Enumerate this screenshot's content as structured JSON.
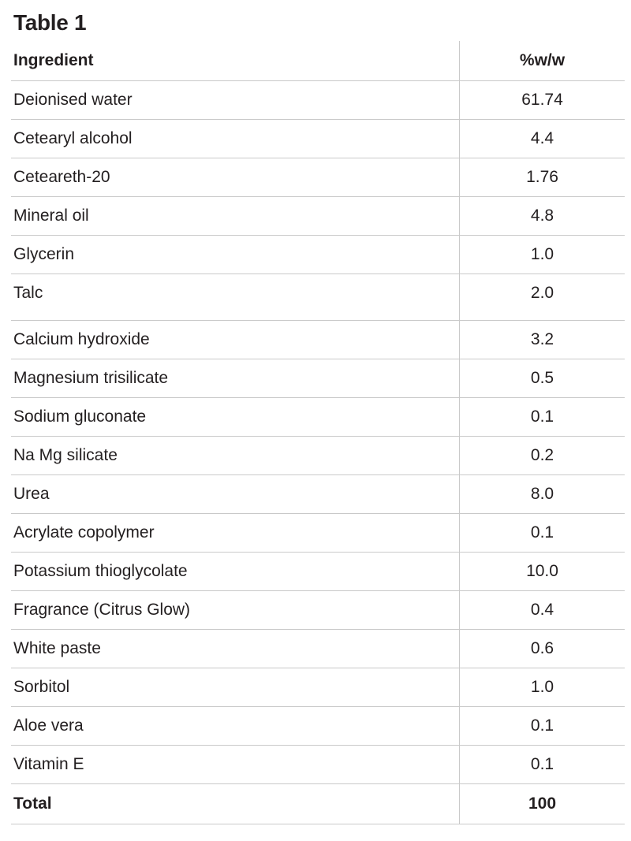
{
  "title": "Table 1",
  "table": {
    "columns": {
      "ingredient": "Ingredient",
      "value": "%w/w"
    },
    "rows": [
      {
        "ingredient": "Deionised water",
        "value": "61.74"
      },
      {
        "ingredient": "Cetearyl alcohol",
        "value": "4.4"
      },
      {
        "ingredient": "Ceteareth-20",
        "value": "1.76"
      },
      {
        "ingredient": "Mineral oil",
        "value": "4.8"
      },
      {
        "ingredient": "Glycerin",
        "value": "1.0"
      },
      {
        "ingredient": "Talc",
        "value": "2.0"
      },
      {
        "ingredient": "Calcium hydroxide",
        "value": "3.2"
      },
      {
        "ingredient": "Magnesium trisilicate",
        "value": "0.5"
      },
      {
        "ingredient": "Sodium gluconate",
        "value": "0.1"
      },
      {
        "ingredient": "Na Mg silicate",
        "value": "0.2"
      },
      {
        "ingredient": "Urea",
        "value": "8.0"
      },
      {
        "ingredient": "Acrylate copolymer",
        "value": "0.1"
      },
      {
        "ingredient": "Potassium thioglycolate",
        "value": "10.0"
      },
      {
        "ingredient": "Fragrance (Citrus Glow)",
        "value": "0.4"
      },
      {
        "ingredient": "White paste",
        "value": "0.6"
      },
      {
        "ingredient": "Sorbitol",
        "value": "1.0"
      },
      {
        "ingredient": "Aloe vera",
        "value": "0.1"
      },
      {
        "ingredient": "Vitamin E",
        "value": "0.1"
      }
    ],
    "total": {
      "label": "Total",
      "value": "100"
    }
  },
  "colors": {
    "text": "#231f20",
    "rule_line": "#c9c9c9",
    "background": "#ffffff"
  }
}
